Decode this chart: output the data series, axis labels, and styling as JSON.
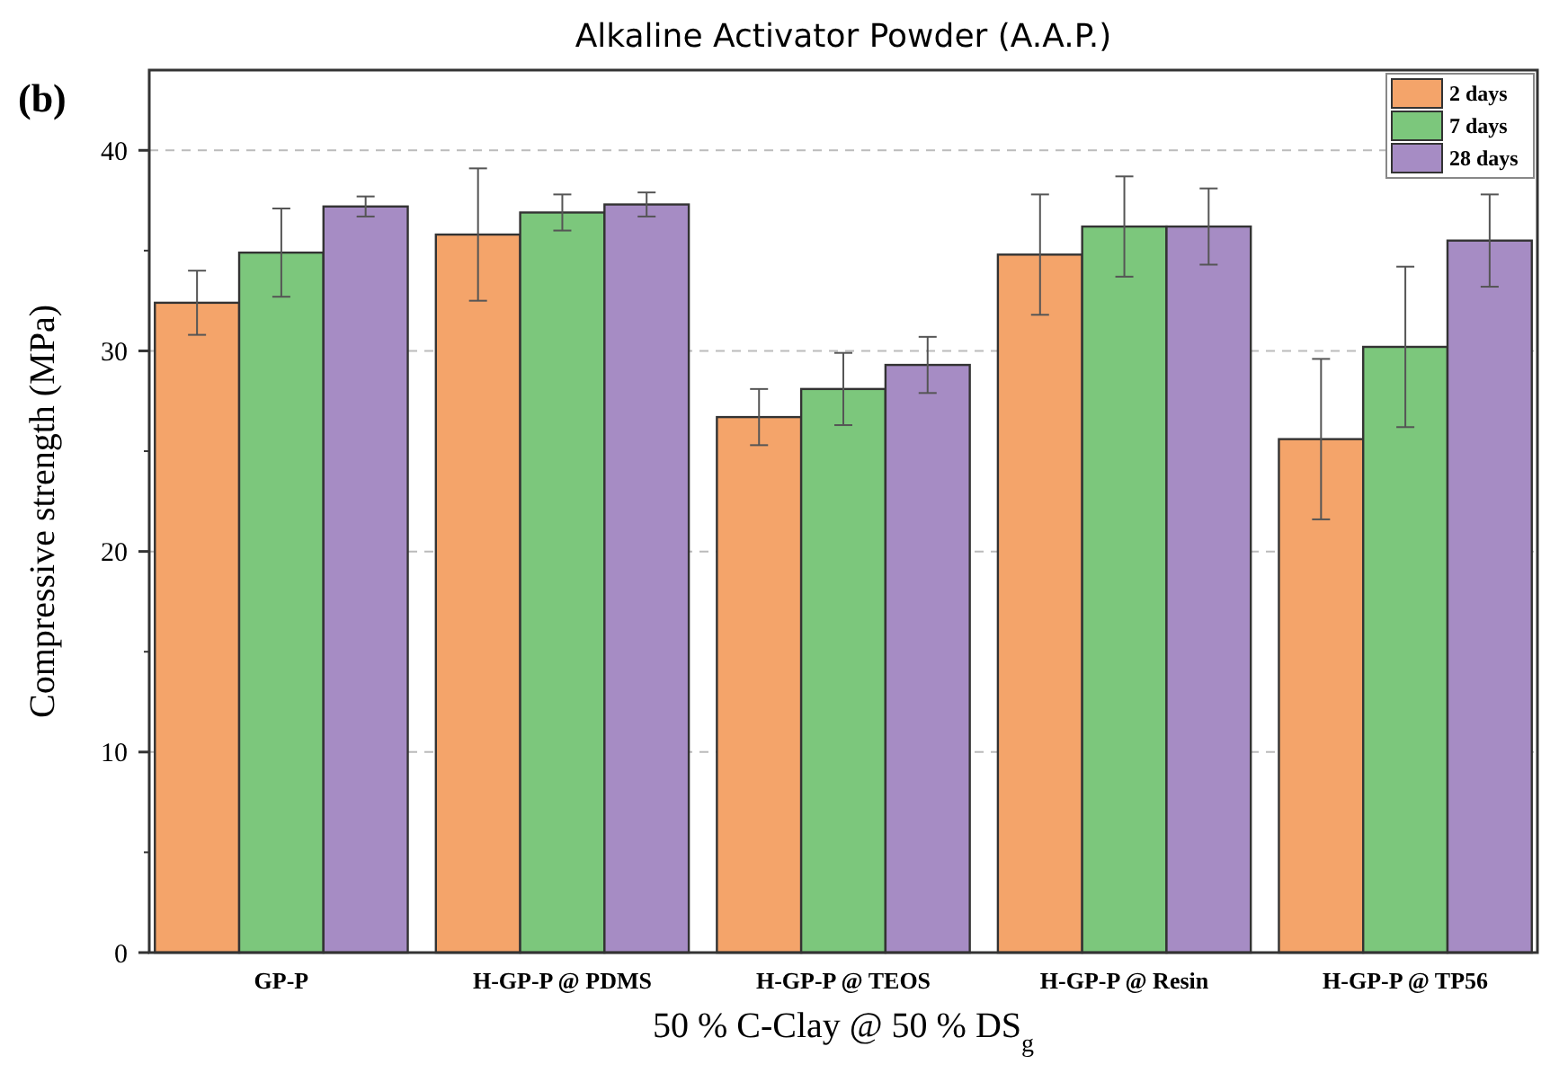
{
  "chart_data": {
    "type": "bar",
    "title": "Alkaline Activator Powder (A.A.P.)",
    "xlabel": "50 % C-Clay @ 50 % DS$_{g}$",
    "ylabel": "Compressive strength (MPa)",
    "annotations": [
      "(b)"
    ],
    "categories": [
      "GP-P",
      "H-GP-P @ PDMS",
      "H-GP-P @ TEOS",
      "H-GP-P @ Resin",
      "H-GP-P @ TP56"
    ],
    "series": [
      {
        "name": "2 days",
        "color": "#f4a46a",
        "values": [
          32.4,
          35.8,
          26.7,
          34.8,
          25.6
        ],
        "errors": [
          1.6,
          3.3,
          1.4,
          3.0,
          4.0
        ]
      },
      {
        "name": "7 days",
        "color": "#7cc77c",
        "values": [
          34.9,
          36.9,
          28.1,
          36.2,
          30.2
        ],
        "errors": [
          2.2,
          0.9,
          1.8,
          2.5,
          4.0
        ]
      },
      {
        "name": "28 days",
        "color": "#a68cc4",
        "values": [
          37.2,
          37.3,
          29.3,
          36.2,
          35.5
        ],
        "errors": [
          0.5,
          0.6,
          1.4,
          1.9,
          2.3
        ]
      }
    ],
    "ylim": [
      0,
      44
    ],
    "yticks": [
      0,
      10,
      20,
      30,
      40
    ],
    "grid": "y",
    "legend": "top right"
  }
}
